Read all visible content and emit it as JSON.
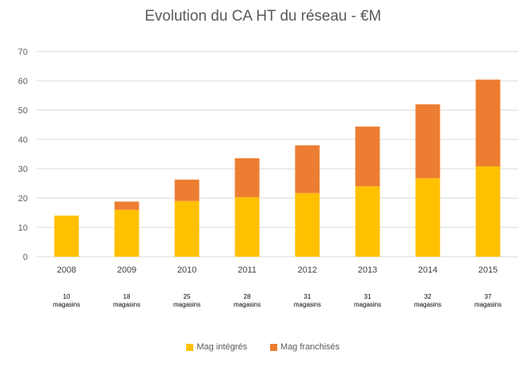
{
  "chart_data": {
    "type": "bar",
    "stacked": true,
    "title": "Evolution du CA HT du réseau - €M",
    "categories": [
      "2008",
      "2009",
      "2010",
      "2011",
      "2012",
      "2013",
      "2014",
      "2015"
    ],
    "category_notes": [
      [
        "10",
        "magasins"
      ],
      [
        "18",
        "magasins"
      ],
      [
        "25",
        "magasins"
      ],
      [
        "28",
        "magasins"
      ],
      [
        "31",
        "magasins"
      ],
      [
        "31",
        "magasins"
      ],
      [
        "32",
        "magasins"
      ],
      [
        "37",
        "magasins"
      ]
    ],
    "series": [
      {
        "name": "Mag intégrés",
        "color": "#FFC000",
        "values": [
          14.0,
          16.0,
          19.0,
          20.3,
          21.7,
          24.0,
          26.8,
          30.8
        ]
      },
      {
        "name": "Mag franchisés",
        "color": "#ED7D31",
        "values": [
          0.0,
          2.8,
          7.3,
          13.3,
          16.3,
          20.4,
          25.2,
          29.6
        ]
      }
    ],
    "ylim": [
      0,
      70
    ],
    "yticks": [
      "0",
      "10",
      "20",
      "30",
      "40",
      "50",
      "60",
      "70"
    ],
    "grid": true,
    "legend_position": "bottom"
  }
}
